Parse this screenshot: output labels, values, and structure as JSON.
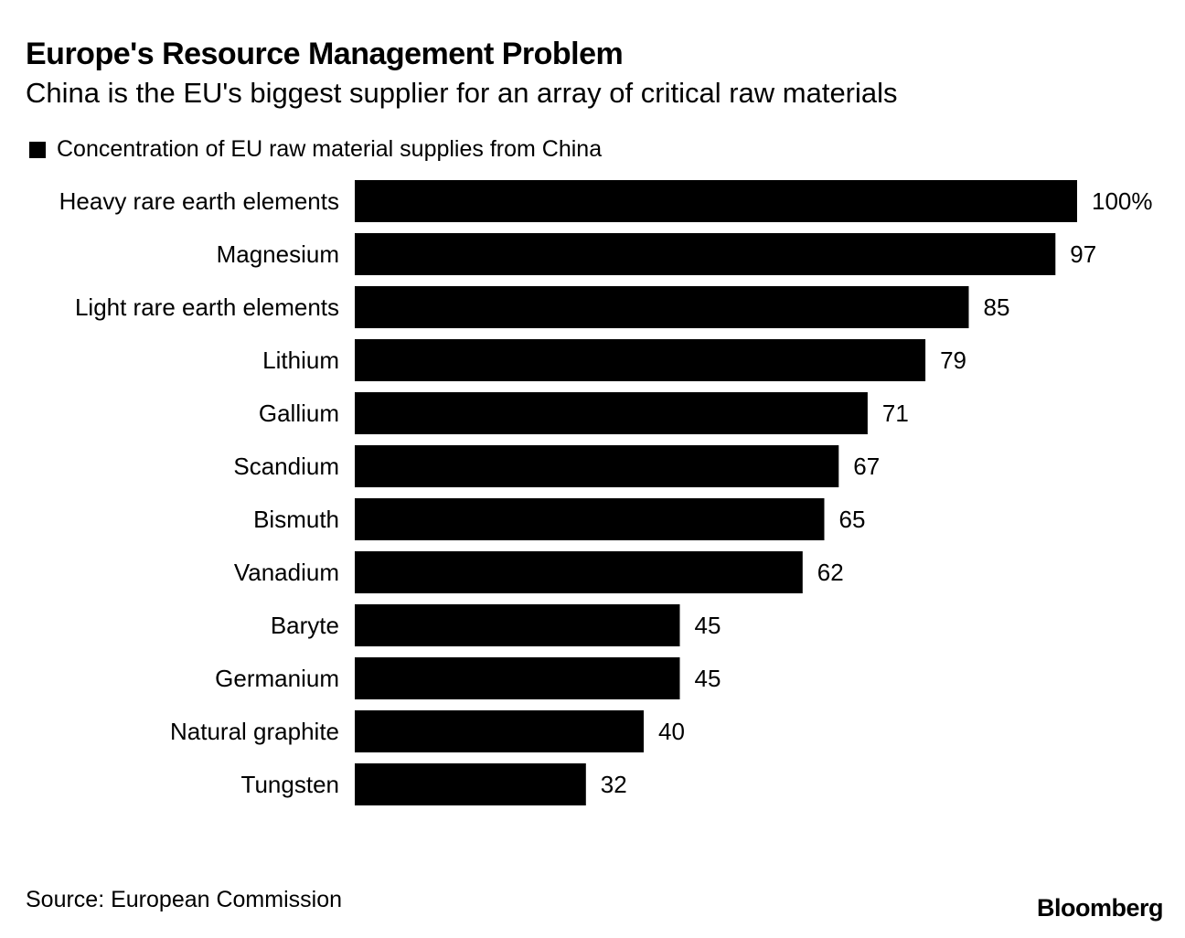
{
  "title": "Europe's Resource Management Problem",
  "subtitle": "China is the EU's biggest supplier for an array of critical raw materials",
  "source": "Source: European Commission",
  "brand": "Bloomberg",
  "chart_data": {
    "type": "bar",
    "orientation": "horizontal",
    "title": "Europe's Resource Management Problem",
    "subtitle": "China is the EU's biggest supplier for an array of critical raw materials",
    "legend": [
      "Concentration of EU raw material supplies from China"
    ],
    "categories": [
      "Heavy rare earth elements",
      "Magnesium",
      "Light rare earth elements",
      "Lithium",
      "Gallium",
      "Scandium",
      "Bismuth",
      "Vanadium",
      "Baryte",
      "Germanium",
      "Natural graphite",
      "Tungsten"
    ],
    "series": [
      {
        "name": "Concentration of EU raw material supplies from China",
        "values": [
          100,
          97,
          85,
          79,
          71,
          67,
          65,
          62,
          45,
          45,
          40,
          32
        ],
        "labels": [
          "100%",
          "97",
          "85",
          "79",
          "71",
          "67",
          "65",
          "62",
          "45",
          "45",
          "40",
          "32"
        ],
        "color": "#000000"
      }
    ],
    "xlim": [
      0,
      100
    ],
    "unit": "%",
    "grid": false
  }
}
